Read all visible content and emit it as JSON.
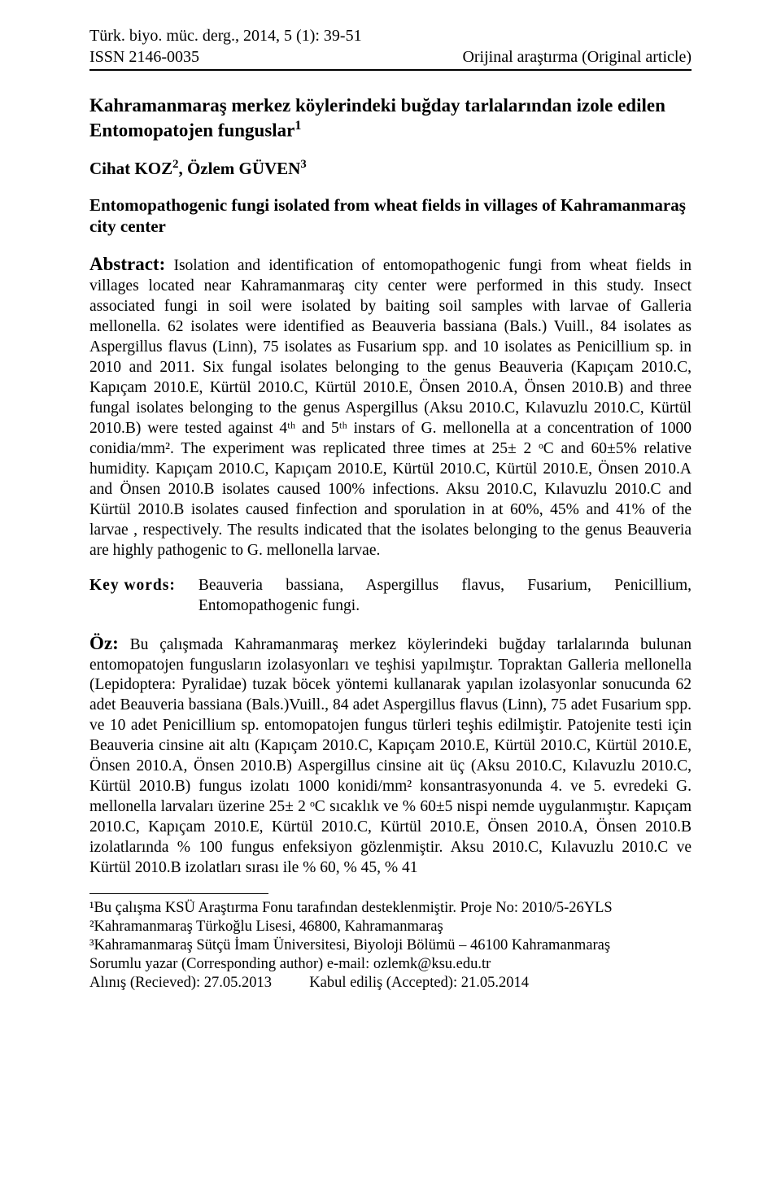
{
  "header": {
    "journal_line1": "Türk. biyo. müc. derg., 2014, 5 (1): 39-51",
    "journal_line2": "ISSN 2146-0035",
    "article_type": "Orijinal araştırma (Original article)"
  },
  "title_tr": "Kahramanmaraş merkez köylerindeki buğday tarlalarından izole edilen Entomopatojen funguslar",
  "title_sup": "1",
  "authors_text": "Cihat KOZ",
  "author1_sup": "2",
  "authors_sep": ", Özlem GÜVEN",
  "author2_sup": "3",
  "title_en": "Entomopathogenic fungi isolated from wheat fields in villages of Kahramanmaraş city center",
  "abstract_label": "Abstract:",
  "abstract_body": " Isolation and identification of entomopathogenic fungi from wheat fields in villages located near Kahramanmaraş city center were performed in this study. Insect associated fungi in soil were isolated by baiting soil samples with larvae of Galleria mellonella. 62 isolates were identified as Beauveria bassiana (Bals.) Vuill., 84 isolates as Aspergillus flavus (Linn), 75 isolates as Fusarium spp. and 10 isolates as Penicillium sp. in 2010 and 2011. Six fungal isolates belonging to the genus Beauveria (Kapıçam 2010.C, Kapıçam 2010.E, Kürtül 2010.C, Kürtül 2010.E, Önsen 2010.A, Önsen 2010.B) and three fungal isolates belonging to the genus Aspergillus (Aksu 2010.C, Kılavuzlu 2010.C, Kürtül 2010.B) were tested against 4ᵗʰ and 5ᵗʰ instars of G. mellonella at a concentration of 1000 conidia/mm². The experiment was replicated three times at 25± 2 ᵒC and 60±5% relative humidity. Kapıçam 2010.C, Kapıçam 2010.E, Kürtül 2010.C, Kürtül 2010.E, Önsen 2010.A and Önsen 2010.B isolates caused 100% infections. Aksu 2010.C, Kılavuzlu 2010.C and Kürtül 2010.B isolates caused finfection and sporulation in at 60%, 45% and 41% of the larvae , respectively. The results indicated that the isolates belonging to the genus Beauveria are highly pathogenic to G. mellonella larvae.",
  "keywords_label": "Key words:",
  "keywords_body": "Beauveria bassiana, Aspergillus flavus, Fusarium, Penicillium, Entomopathogenic fungi.",
  "oz_label": "Öz:",
  "oz_body": " Bu çalışmada Kahramanmaraş merkez köylerindeki buğday tarlalarında bulunan entomopatojen fungusların izolasyonları ve teşhisi yapılmıştır. Topraktan Galleria mellonella (Lepidoptera: Pyralidae) tuzak böcek yöntemi kullanarak yapılan izolasyonlar sonucunda 62 adet Beauveria bassiana (Bals.)Vuill., 84 adet Aspergillus flavus (Linn), 75 adet Fusarium spp. ve 10 adet Penicillium sp. entomopatojen fungus türleri teşhis edilmiştir. Patojenite testi için Beauveria cinsine ait altı (Kapıçam 2010.C, Kapıçam 2010.E, Kürtül 2010.C, Kürtül 2010.E, Önsen 2010.A, Önsen 2010.B) Aspergillus cinsine ait üç (Aksu 2010.C, Kılavuzlu 2010.C, Kürtül 2010.B) fungus izolatı 1000 konidi/mm² konsantrasyonunda 4. ve 5. evredeki G. mellonella larvaları üzerine 25± 2 ᵒC sıcaklık ve % 60±5 nispi nemde uygulanmıştır. Kapıçam 2010.C, Kapıçam 2010.E, Kürtül 2010.C, Kürtül 2010.E, Önsen 2010.A, Önsen 2010.B izolatlarında % 100 fungus enfeksiyon gözlenmiştir. Aksu 2010.C, Kılavuzlu 2010.C ve Kürtül 2010.B izolatları sırası ile % 60, % 45, % 41",
  "footnotes": {
    "f1": "¹Bu çalışma KSÜ Araştırma Fonu tarafından desteklenmiştir. Proje No: 2010/5-26YLS",
    "f2": "²Kahramanmaraş Türkoğlu Lisesi, 46800, Kahramanmaraş",
    "f3": "³Kahramanmaraş Sütçü İmam Üniversitesi, Biyoloji Bölümü – 46100 Kahramanmaraş",
    "corr": "Sorumlu yazar (Corresponding author) e-mail: ozlemk@ksu.edu.tr",
    "dates": "Alınış (Recieved): 27.05.2013          Kabul ediliş (Accepted): 21.05.2014"
  }
}
